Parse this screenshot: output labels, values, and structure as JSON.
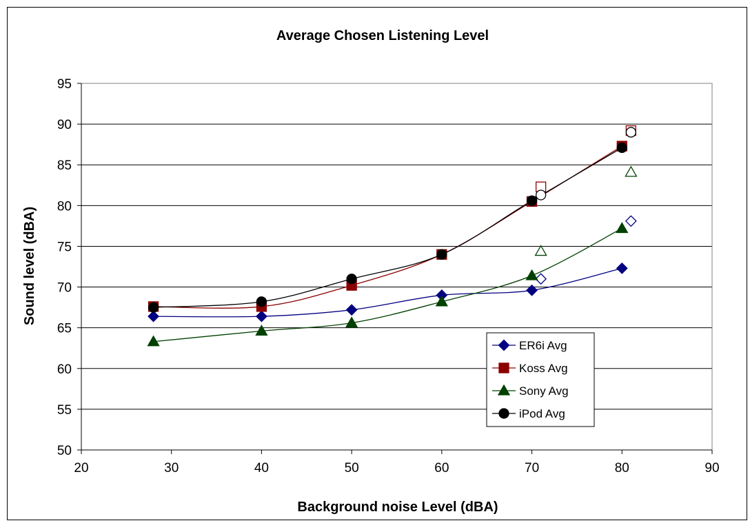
{
  "chart_data": {
    "type": "line",
    "title": "Average Chosen Listening Level",
    "xlabel": "Background noise Level (dBA)",
    "ylabel": "Sound level (dBA)",
    "xlim": [
      20,
      90
    ],
    "ylim": [
      50,
      95
    ],
    "xticks": [
      20,
      30,
      40,
      50,
      60,
      70,
      80,
      90
    ],
    "yticks": [
      50,
      55,
      60,
      65,
      70,
      75,
      80,
      85,
      90,
      95
    ],
    "grid": "horizontal",
    "legend_position": "bottom-right",
    "series": [
      {
        "name": "ER6i Avg",
        "color": "#000080",
        "marker": "diamond",
        "x": [
          28,
          40,
          50,
          60,
          70,
          80
        ],
        "y": [
          66.4,
          66.4,
          67.2,
          69.0,
          69.6,
          72.3
        ],
        "hollow_points": [
          {
            "x": 71,
            "y": 71.0
          },
          {
            "x": 81,
            "y": 78.1
          }
        ]
      },
      {
        "name": "Koss Avg",
        "color": "#8b0000",
        "marker": "square",
        "x": [
          28,
          40,
          50,
          60,
          70,
          80
        ],
        "y": [
          67.6,
          67.6,
          70.2,
          74.0,
          80.5,
          87.3
        ],
        "hollow_points": [
          {
            "x": 71,
            "y": 82.3
          },
          {
            "x": 81,
            "y": 89.2
          }
        ]
      },
      {
        "name": "Sony Avg",
        "color": "#004000",
        "marker": "triangle",
        "x": [
          28,
          40,
          50,
          60,
          70,
          80
        ],
        "y": [
          63.3,
          64.6,
          65.6,
          68.2,
          71.4,
          77.2
        ],
        "hollow_points": [
          {
            "x": 71,
            "y": 74.4
          },
          {
            "x": 81,
            "y": 84.1
          }
        ]
      },
      {
        "name": "iPod Avg",
        "color": "#000000",
        "marker": "circle",
        "x": [
          28,
          40,
          50,
          60,
          70,
          80
        ],
        "y": [
          67.5,
          68.2,
          71.0,
          74.0,
          80.6,
          87.1
        ],
        "hollow_points": [
          {
            "x": 71,
            "y": 81.3
          },
          {
            "x": 81,
            "y": 89.0
          }
        ]
      }
    ]
  }
}
